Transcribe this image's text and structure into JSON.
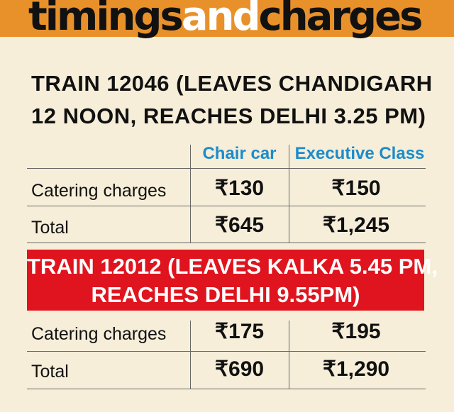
{
  "header": {
    "title_parts": [
      "timings",
      "and",
      "charges"
    ]
  },
  "section1": {
    "title_lines": [
      "TRAIN 12046 (LEAVES CHANDIGARH",
      "12 NOON, REACHES DELHI 3.25 PM)"
    ],
    "columns": [
      "Chair car",
      "Executive Class"
    ],
    "rows": [
      [
        "Catering charges",
        "₹130",
        "₹150"
      ],
      [
        "Total",
        "₹645",
        "₹1,245"
      ]
    ]
  },
  "section2": {
    "title_lines": [
      "TRAIN 12012 (LEAVES KALKA 5.45 PM,",
      "REACHES DELHI 9.55PM)"
    ],
    "rows": [
      [
        "Catering charges",
        "₹175",
        "₹195"
      ],
      [
        "Total",
        "₹690",
        "₹1,290"
      ]
    ]
  }
}
